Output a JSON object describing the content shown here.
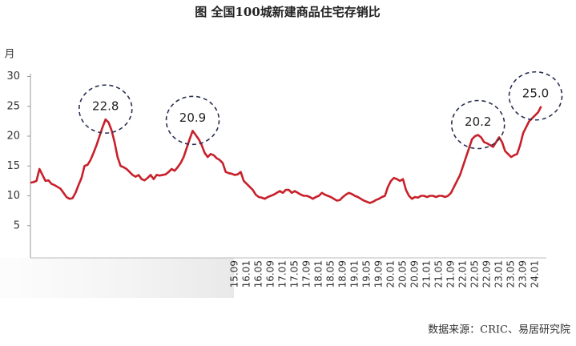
{
  "chart_data": {
    "type": "line",
    "title": "图  全国100城新建商品住宅存销比",
    "y_label": "月",
    "source": "数据来源：CRIC、易居研究院",
    "color": "#c8202a",
    "ylim": [
      0,
      30
    ],
    "yticks": [
      5,
      10,
      15,
      20,
      25,
      30
    ],
    "categories": [
      null,
      null,
      null,
      null,
      null,
      null,
      null,
      null,
      null,
      null,
      null,
      null,
      null,
      null,
      null,
      null,
      null,
      null,
      null,
      null,
      null,
      null,
      null,
      null,
      null,
      null,
      null,
      null,
      null,
      null,
      null,
      null,
      null,
      null,
      null,
      null,
      null,
      null,
      null,
      null,
      null,
      null,
      null,
      null,
      null,
      null,
      null,
      null,
      null,
      null,
      null,
      null,
      null,
      null,
      null,
      null,
      null,
      null,
      null,
      null,
      null,
      null,
      null,
      null,
      null,
      null,
      null,
      null,
      "15.09",
      null,
      null,
      null,
      "16.01",
      null,
      null,
      null,
      "16.05",
      null,
      null,
      null,
      "16.09",
      null,
      null,
      null,
      "17.01",
      null,
      null,
      null,
      "17.05",
      null,
      null,
      null,
      "17.09",
      null,
      null,
      null,
      "18.01",
      null,
      null,
      null,
      "18.05",
      null,
      null,
      null,
      "18.09",
      null,
      null,
      null,
      "19.01",
      null,
      null,
      null,
      "19.05",
      null,
      null,
      null,
      "19.09",
      null,
      null,
      null,
      "20.01",
      null,
      null,
      null,
      "20.05",
      null,
      null,
      null,
      "20.09",
      null,
      null,
      null,
      "21.01",
      null,
      null,
      null,
      "21.05",
      null,
      null,
      null,
      "21.09",
      null,
      null,
      null,
      "22.01",
      null,
      null,
      null,
      "22.05",
      null,
      null,
      null,
      "22.09",
      null,
      null,
      null,
      "23.01",
      null,
      null,
      null,
      "23.05",
      null,
      null,
      null,
      "23.09",
      null,
      null,
      null,
      "24.01",
      null,
      null
    ],
    "values": [
      12.2,
      12.3,
      12.5,
      14.5,
      13.5,
      12.5,
      12.6,
      12,
      11.8,
      11.5,
      11.2,
      10.5,
      9.8,
      9.5,
      9.6,
      10.5,
      11.8,
      13,
      15,
      15.2,
      16,
      17.2,
      18.5,
      20,
      21.5,
      22.8,
      22.3,
      21,
      19,
      16.5,
      15,
      14.8,
      14.5,
      14,
      13.5,
      13.2,
      13.5,
      12.8,
      12.6,
      13,
      13.5,
      12.8,
      13.5,
      13.4,
      13.5,
      13.6,
      14,
      14.5,
      14.2,
      14.8,
      15.5,
      16.5,
      18,
      19.5,
      20.9,
      20.2,
      19.5,
      18.5,
      17.2,
      16.5,
      17,
      16.8,
      16.3,
      16,
      15.5,
      14,
      13.8,
      13.7,
      13.5,
      13.6,
      14,
      12.5,
      12,
      11.5,
      11,
      10.2,
      9.8,
      9.7,
      9.5,
      9.8,
      10,
      10.2,
      10.5,
      10.8,
      10.5,
      11,
      11,
      10.5,
      10.8,
      10.5,
      10.2,
      10,
      10,
      9.8,
      9.5,
      9.8,
      10,
      10.5,
      10.2,
      10,
      9.8,
      9.5,
      9.2,
      9.3,
      9.8,
      10.2,
      10.5,
      10.3,
      10,
      9.8,
      9.5,
      9.2,
      9,
      8.8,
      9,
      9.3,
      9.5,
      9.8,
      10,
      11.5,
      12.5,
      13,
      12.8,
      12.5,
      12.8,
      11,
      10,
      9.5,
      9.8,
      9.7,
      10,
      10,
      9.8,
      10,
      10,
      9.8,
      10,
      10,
      9.8,
      10,
      10.5,
      11.5,
      12.5,
      13.5,
      15,
      16.5,
      18,
      19.5,
      20,
      20.2,
      19.8,
      19,
      18.8,
      18.5,
      18.2,
      19,
      19.8,
      19,
      17.5,
      17,
      16.5,
      16.8,
      17,
      18.5,
      20.5,
      21.5,
      22.5,
      23,
      23.5,
      24,
      25
    ],
    "value_labels": [
      null,
      null,
      null,
      null,
      null,
      null,
      null,
      null,
      null,
      null,
      null,
      null,
      null,
      null,
      null,
      null,
      null,
      null,
      null,
      null,
      null,
      null,
      null,
      null,
      null,
      "22.8",
      null,
      null,
      null,
      null,
      null,
      null,
      null,
      null,
      null,
      null,
      null,
      null,
      null,
      null,
      null,
      null,
      null,
      null,
      null,
      null,
      null,
      null,
      null,
      null,
      null,
      null,
      null,
      null,
      "20.9",
      null,
      null,
      null,
      null,
      null,
      null,
      null,
      null,
      null,
      null,
      null,
      null,
      null,
      null,
      null,
      null,
      null,
      null,
      null,
      null,
      null,
      null,
      null,
      null,
      null,
      null,
      null,
      null,
      null,
      null,
      null,
      null,
      null,
      null,
      null,
      null,
      null,
      null,
      null,
      null,
      null,
      null,
      null,
      null,
      null,
      null,
      null,
      null,
      null,
      null,
      null,
      null,
      null,
      null,
      null,
      null,
      null,
      null,
      null,
      null,
      null,
      null,
      null,
      null,
      null,
      null,
      null,
      null,
      null,
      null,
      null,
      null,
      null,
      null,
      null,
      null,
      null,
      null,
      null,
      null,
      null,
      null,
      null,
      null,
      null,
      null,
      null,
      null,
      null,
      null,
      null,
      null,
      null,
      null,
      "20.2",
      null,
      null,
      null,
      null,
      null,
      null,
      null,
      null,
      null,
      null,
      null,
      null,
      null,
      null,
      null,
      null,
      null,
      null,
      null,
      null,
      "25.0"
    ]
  }
}
